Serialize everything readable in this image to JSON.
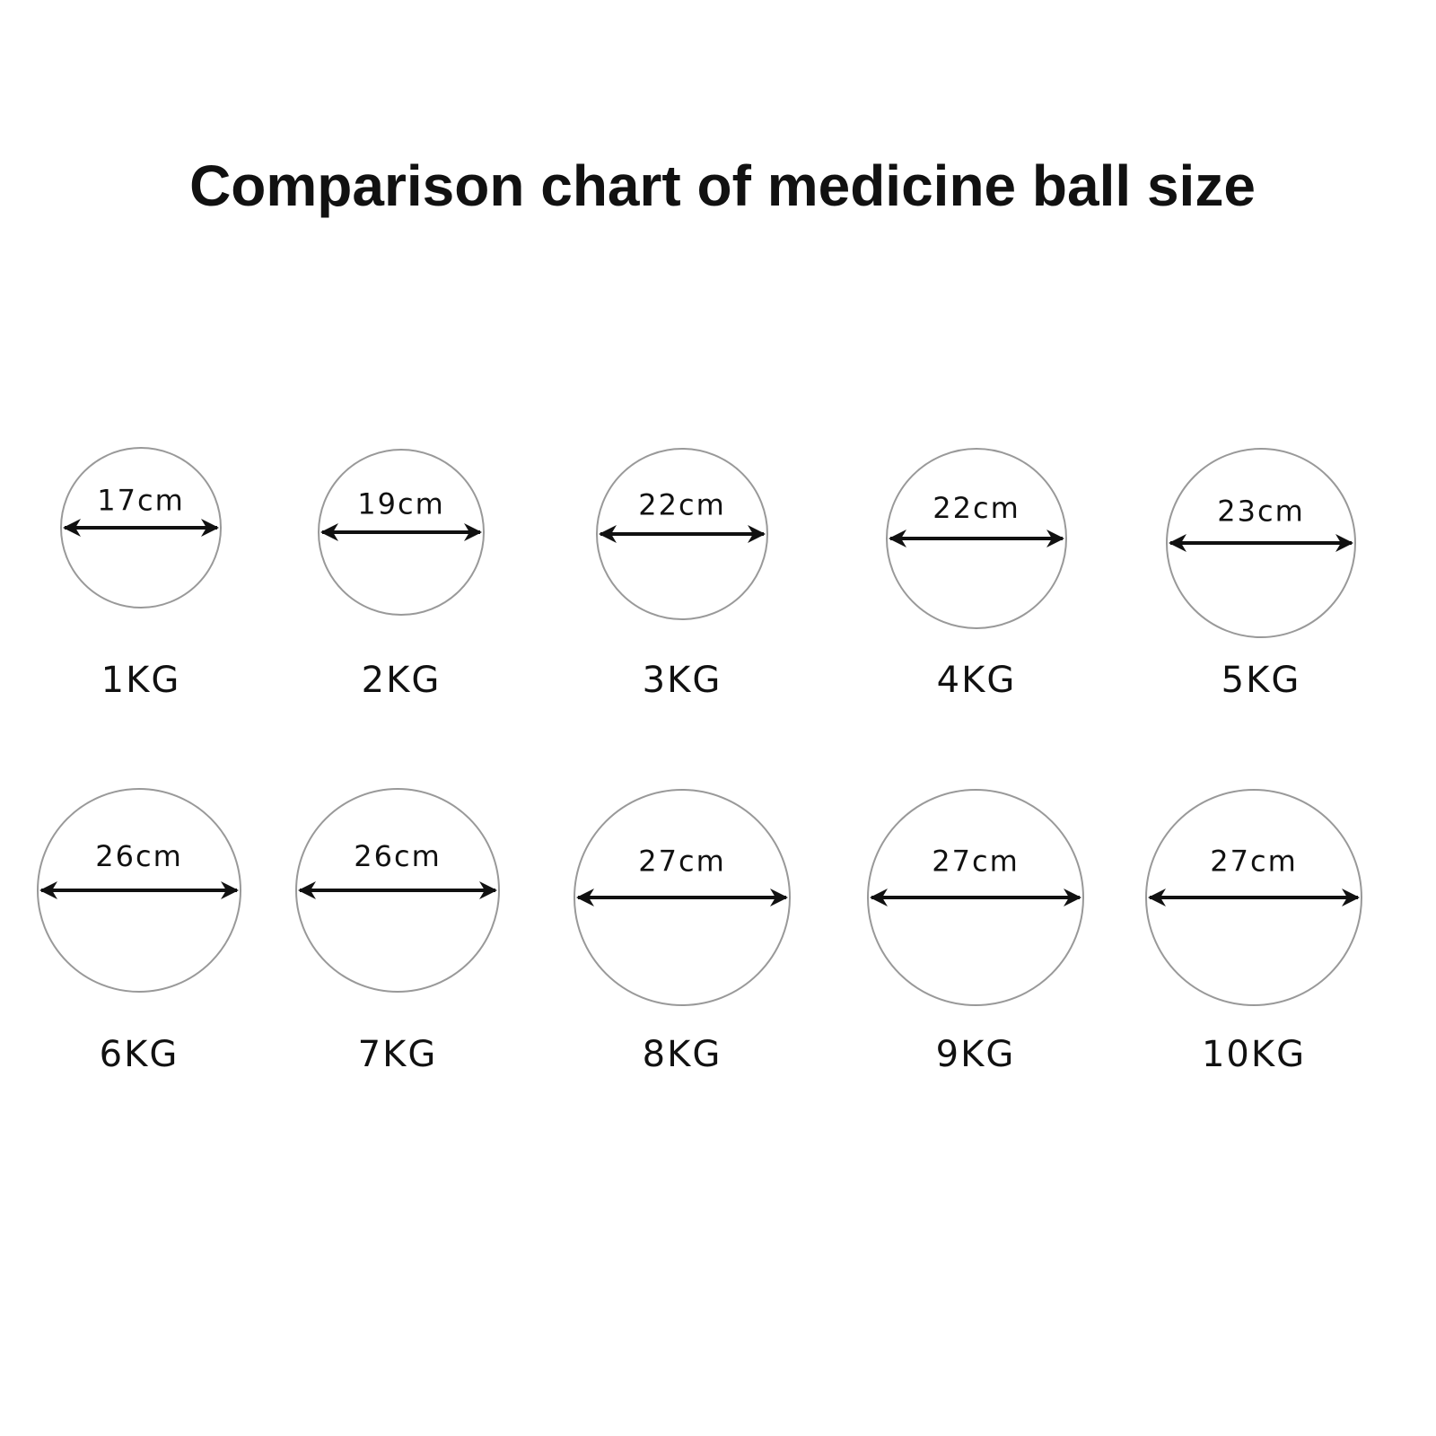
{
  "title": "Comparison chart of medicine ball size",
  "balls": [
    {
      "diameter": "17cm",
      "weight": "1KG"
    },
    {
      "diameter": "19cm",
      "weight": "2KG"
    },
    {
      "diameter": "22cm",
      "weight": "3KG"
    },
    {
      "diameter": "22cm",
      "weight": "4KG"
    },
    {
      "diameter": "23cm",
      "weight": "5KG"
    },
    {
      "diameter": "26cm",
      "weight": "6KG"
    },
    {
      "diameter": "26cm",
      "weight": "7KG"
    },
    {
      "diameter": "27cm",
      "weight": "8KG"
    },
    {
      "diameter": "27cm",
      "weight": "9KG"
    },
    {
      "diameter": "27cm",
      "weight": "10KG"
    }
  ]
}
